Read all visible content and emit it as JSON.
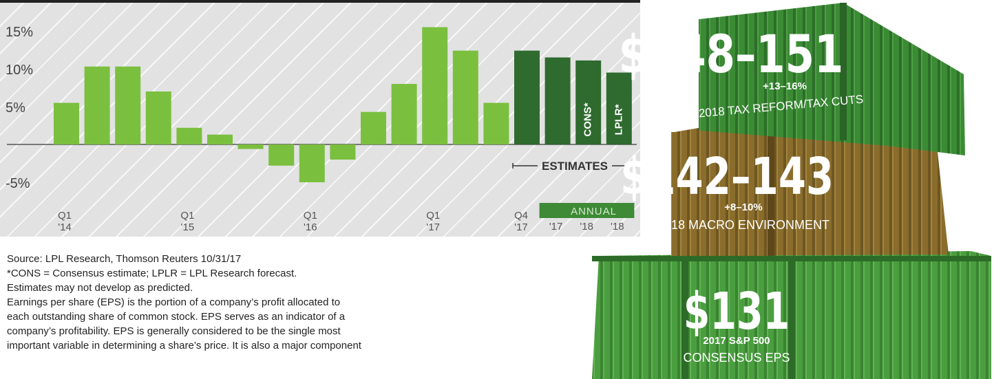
{
  "chart_data": {
    "type": "bar",
    "yticks": [
      "15%",
      "10%",
      "5%",
      "-5%"
    ],
    "ylim": [
      -8,
      18
    ],
    "quarterly": [
      {
        "label": "Q1\n'14",
        "value": 5.5
      },
      {
        "label": "",
        "value": 10.3
      },
      {
        "label": "",
        "value": 10.3
      },
      {
        "label": "",
        "value": 7.0
      },
      {
        "label": "Q1\n'15",
        "value": 2.2
      },
      {
        "label": "",
        "value": 1.3
      },
      {
        "label": "",
        "value": -0.6
      },
      {
        "label": "",
        "value": -2.8
      },
      {
        "label": "Q1\n'16",
        "value": -5.0
      },
      {
        "label": "",
        "value": -2.0
      },
      {
        "label": "",
        "value": 4.3
      },
      {
        "label": "",
        "value": 8.0
      },
      {
        "label": "Q1\n'17",
        "value": 15.5
      },
      {
        "label": "",
        "value": 12.4
      },
      {
        "label": "",
        "value": 5.5
      }
    ],
    "estimates": [
      {
        "label": "Q4\n'17",
        "value": 12.4,
        "bar_label": ""
      },
      {
        "label": "'17",
        "value": 11.5,
        "bar_label": ""
      },
      {
        "label": "'18",
        "value": 11.1,
        "bar_label": "CONS*"
      },
      {
        "label": "'18",
        "value": 9.5,
        "bar_label": "LPLR*"
      }
    ],
    "estimates_label": "ESTIMATES",
    "annual_label": "ANNUAL",
    "colors": {
      "quarterly": "#7bbf3f",
      "estimate": "#2f6a2f",
      "annual_band": "#3e8a36"
    }
  },
  "notes": {
    "source": "Source: LPL Research, Thomson Reuters 10/31/17",
    "cons_def": "*CONS = Consensus estimate; LPLR = LPL Research forecast.",
    "disclaimer": "Estimates may not develop as predicted.",
    "eps_1": "Earnings per share (EPS) is the portion of a company’s profit allocated to",
    "eps_2": "each outstanding share of common stock. EPS serves as an indicator of a",
    "eps_3": "company’s profitability. EPS is generally considered to be the single most",
    "eps_4": "important variable in determining a share’s price. It is also a major component"
  },
  "containers": [
    {
      "value": "$148–151",
      "change": "+13–16%",
      "caption": "2018 TAX REFORM/TAX CUTS",
      "color": "#3b8b35"
    },
    {
      "value": "$142–143",
      "change": "+8–10%",
      "caption": "2018 MACRO ENVIRONMENT",
      "color": "#8a6d2c"
    },
    {
      "value": "$131",
      "change": "2017 S&P 500",
      "caption": "CONSENSUS EPS",
      "color": "#3e8e37"
    }
  ]
}
